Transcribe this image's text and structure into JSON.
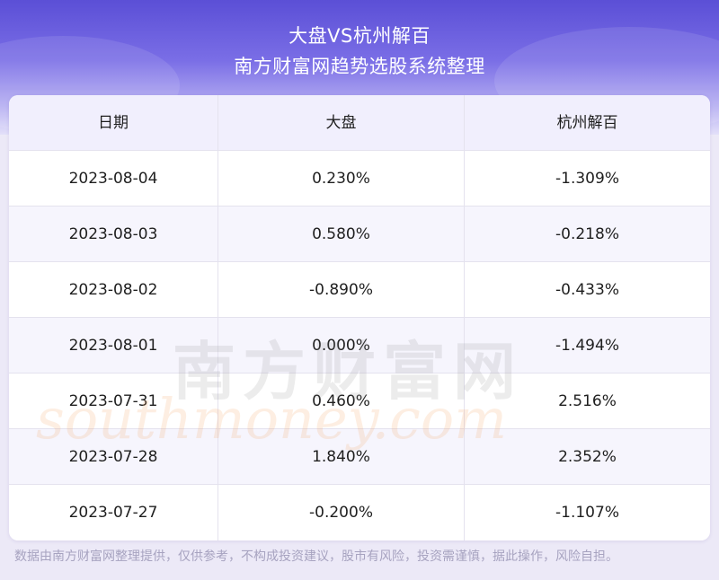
{
  "header": {
    "title_line1": "大盘VS杭州解百",
    "title_line2": "南方财富网趋势选股系统整理"
  },
  "table": {
    "columns": [
      "日期",
      "大盘",
      "杭州解百"
    ],
    "rows": [
      [
        "2023-08-04",
        "0.230%",
        "-1.309%"
      ],
      [
        "2023-08-03",
        "0.580%",
        "-0.218%"
      ],
      [
        "2023-08-02",
        "-0.890%",
        "-0.433%"
      ],
      [
        "2023-08-01",
        "0.000%",
        "-1.494%"
      ],
      [
        "2023-07-31",
        "0.460%",
        "2.516%"
      ],
      [
        "2023-07-28",
        "1.840%",
        "2.352%"
      ],
      [
        "2023-07-27",
        "-0.200%",
        "-1.107%"
      ]
    ]
  },
  "watermark": {
    "cn": "南方财富网",
    "en": "southmoney.com"
  },
  "footer": {
    "disclaimer": "数据由南方财富网整理提供，仅供参考，不构成投资建议，股市有风险，投资需谨慎，据此操作，风险自担。"
  },
  "colors": {
    "header_gradient_top": "#5b4fd6",
    "header_row_bg": "#f1effd",
    "alt_row_bg": "#f6f5fd",
    "text": "#1f1f1f"
  }
}
